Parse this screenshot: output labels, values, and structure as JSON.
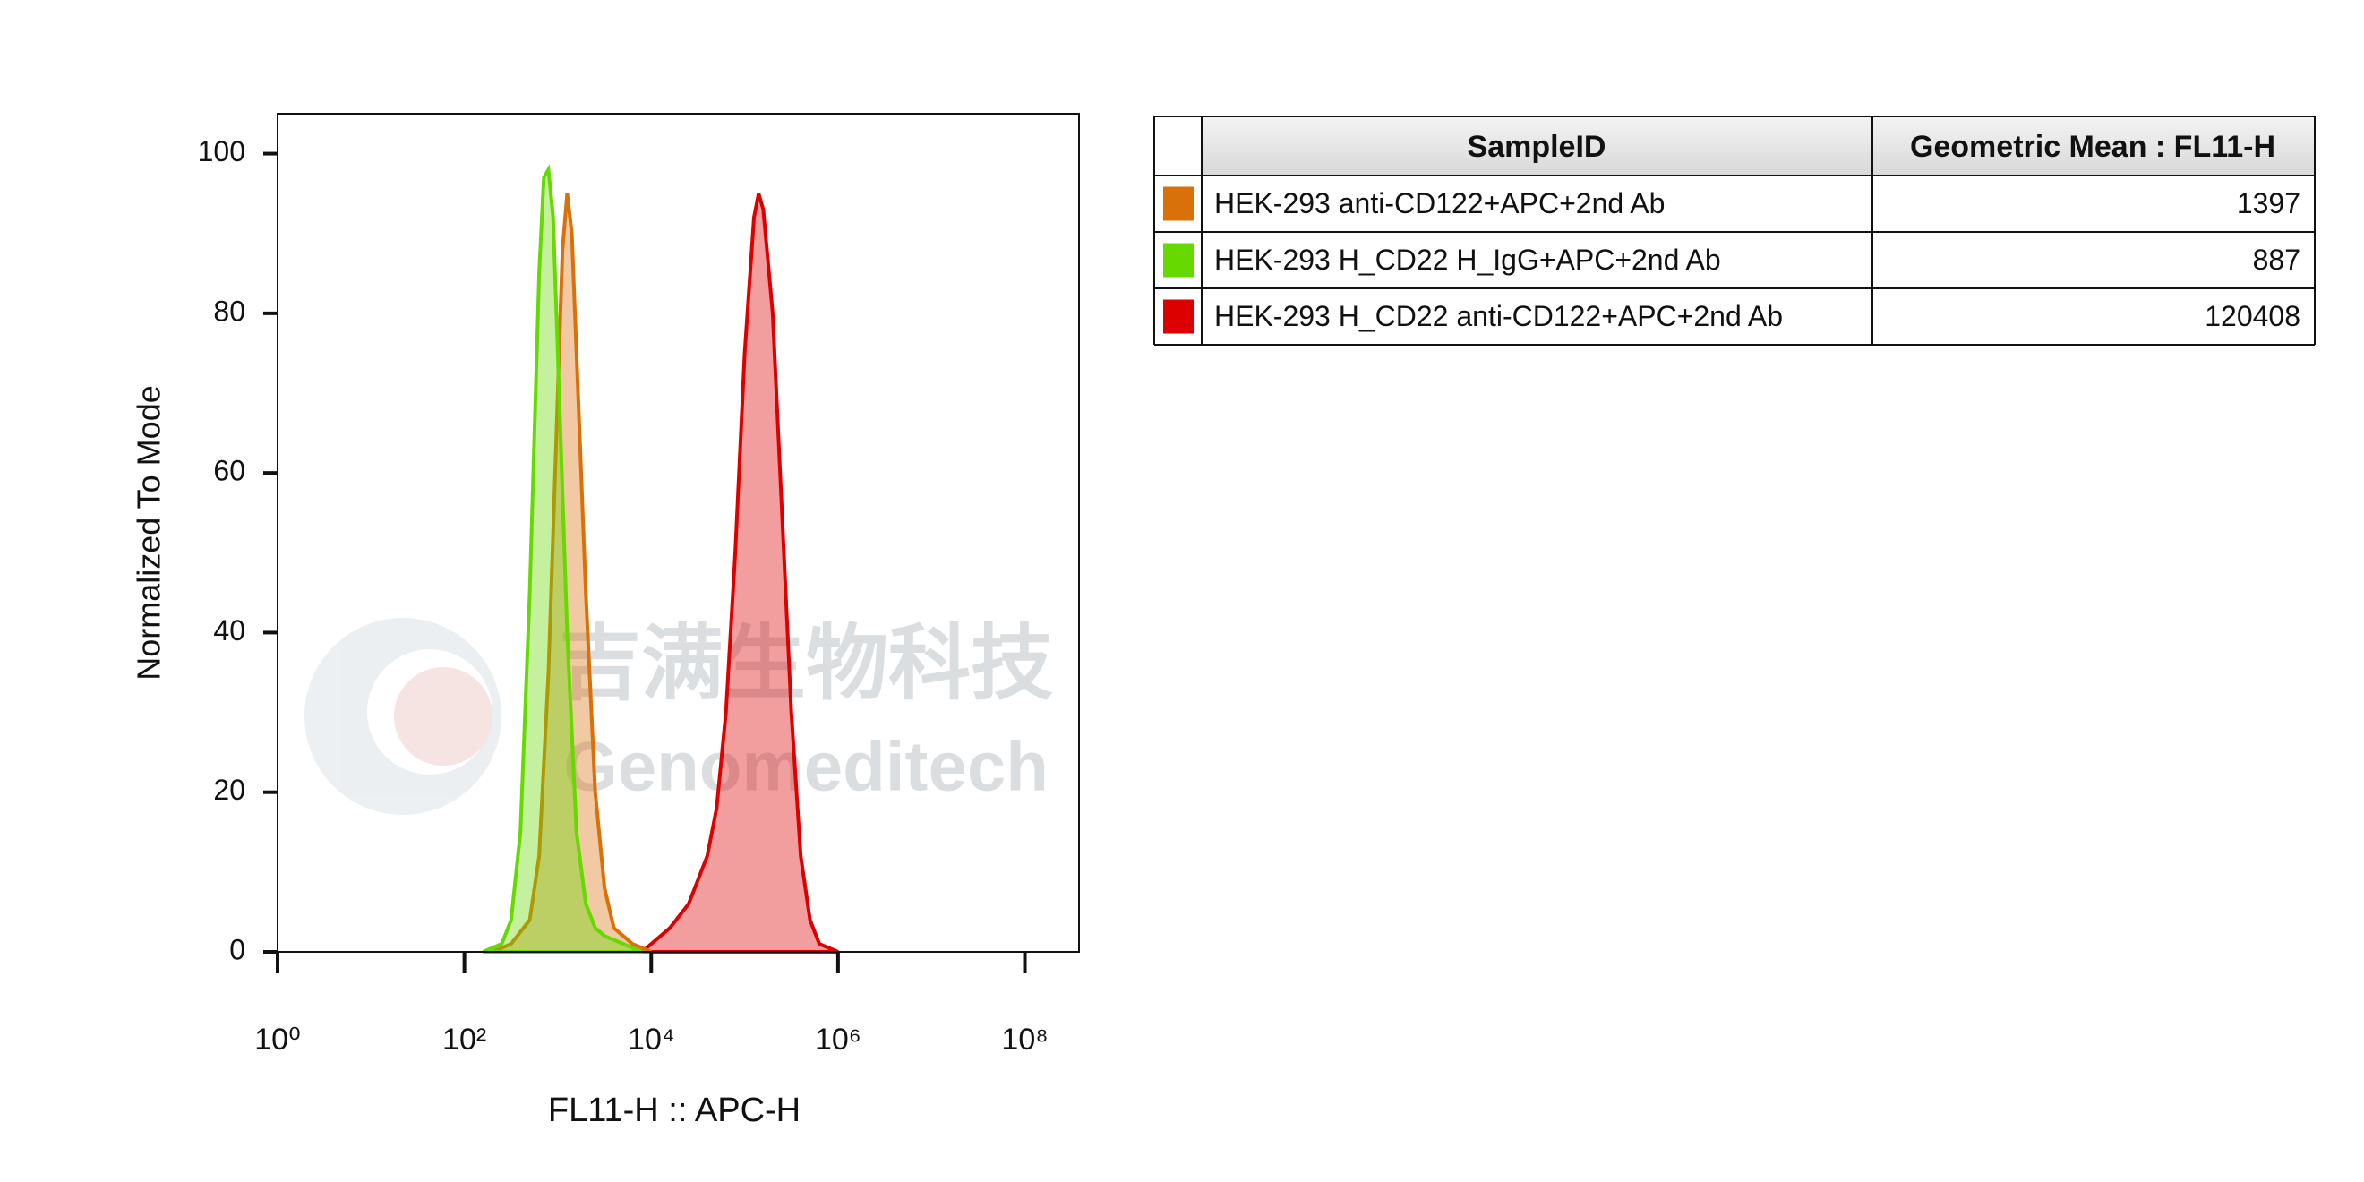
{
  "chart_data": {
    "type": "area",
    "x_label": "FL11-H :: APC-H",
    "y_label": "Normalized To Mode",
    "xscale": "log",
    "xlim": [
      1,
      380000000
    ],
    "ylim": [
      0,
      105
    ],
    "xticks": [
      {
        "value": 1,
        "label": "10⁰"
      },
      {
        "value": 100,
        "label": "10²"
      },
      {
        "value": 10000,
        "label": "10⁴"
      },
      {
        "value": 1000000,
        "label": "10⁶"
      },
      {
        "value": 100000000,
        "label": "10⁸"
      }
    ],
    "yticks": [
      0,
      20,
      40,
      60,
      80,
      100
    ],
    "series": [
      {
        "name": "HEK-293 H_CD22 anti-CD122+APC+2nd Ab",
        "color": "#dd0000",
        "x": [
          7943,
          10000,
          15849,
          25119,
          31623,
          39811,
          50119,
          63096,
          79433,
          100000,
          125893,
          141254,
          158489,
          199526,
          251189,
          316228,
          398107,
          501187,
          630957,
          1000000
        ],
        "values": [
          0,
          1,
          3,
          6,
          9,
          12,
          18,
          30,
          50,
          75,
          92,
          95,
          93,
          80,
          55,
          30,
          12,
          4,
          1,
          0
        ]
      },
      {
        "name": "HEK-293 anti-CD122+APC+2nd Ab",
        "color": "#d9700a",
        "x": [
          200,
          316,
          501,
          631,
          794,
          1000,
          1122,
          1259,
          1413,
          1585,
          1995,
          2512,
          3162,
          3981,
          6310,
          10000
        ],
        "values": [
          0,
          1,
          4,
          12,
          35,
          70,
          88,
          95,
          90,
          75,
          45,
          20,
          8,
          3,
          1,
          0
        ]
      },
      {
        "name": "HEK-293 H_CD22 H_IgG+APC+2nd Ab",
        "color": "#66d900",
        "x": [
          158,
          251,
          316,
          398,
          501,
          631,
          708,
          794,
          891,
          1000,
          1259,
          1585,
          1995,
          2512,
          3162,
          5012,
          7943
        ],
        "values": [
          0,
          1,
          4,
          15,
          45,
          85,
          97,
          98,
          92,
          75,
          40,
          15,
          6,
          3,
          2,
          1,
          0
        ]
      }
    ]
  },
  "table": {
    "headers": [
      "SampleID",
      "Geometric Mean : FL11-H"
    ],
    "row_series": [
      1,
      2,
      0
    ],
    "geometric_means": [
      1397,
      887,
      120408
    ]
  },
  "watermark": {
    "chinese": "吉满生物科技",
    "english": "Genomeditech"
  }
}
